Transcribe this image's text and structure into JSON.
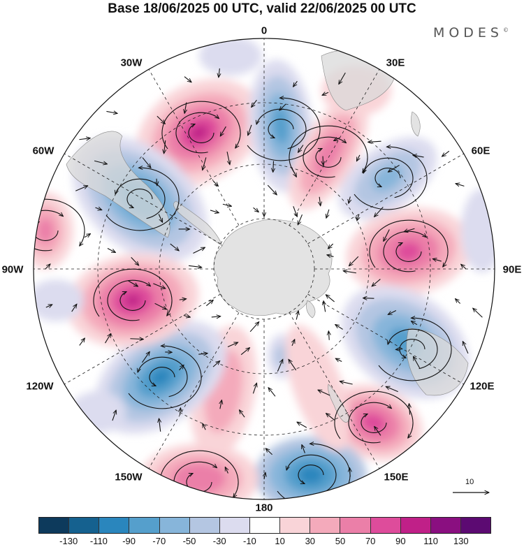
{
  "title": "Base 18/06/2025 00 UTC, valid 22/06/2025 00 UTC",
  "brand": "MODES",
  "brand_mark": "©",
  "longitude_labels": {
    "lon_0": "0",
    "lon_30e": "30E",
    "lon_60e": "60E",
    "lon_90e": "90E",
    "lon_120e": "120E",
    "lon_150e": "150E",
    "lon_180": "180",
    "lon_150w": "150W",
    "lon_120w": "120W",
    "lon_90w": "90W",
    "lon_60w": "60W",
    "lon_30w": "30W"
  },
  "reference_vector": {
    "label": "10"
  },
  "colorbar": {
    "ticks": [
      "-130",
      "-110",
      "-90",
      "-70",
      "-50",
      "-30",
      "-10",
      "10",
      "30",
      "50",
      "70",
      "90",
      "110",
      "130"
    ],
    "colors": [
      "#0d3a5c",
      "#15618f",
      "#2a86bd",
      "#559fcc",
      "#87b5da",
      "#b4c6e2",
      "#dcdcef",
      "#ffffff",
      "#f9d4d8",
      "#f4aabb",
      "#eb7fa8",
      "#de4c9b",
      "#c02088",
      "#8a0f80",
      "#5c0a72"
    ]
  },
  "map": {
    "projection": "south-polar-stereographic",
    "field": "anomaly",
    "land_color": "#d9d9d9"
  }
}
